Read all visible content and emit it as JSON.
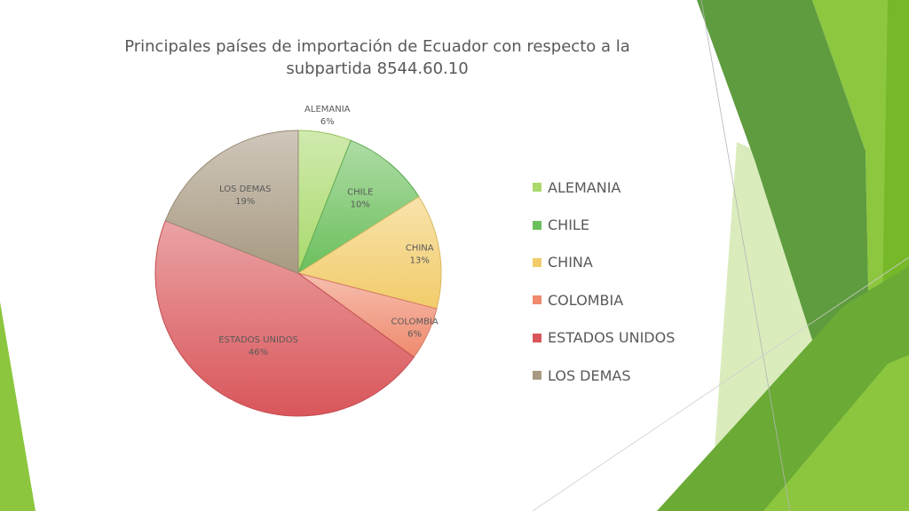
{
  "chart_data": {
    "type": "pie",
    "title": "Principales países de importación de Ecuador con respecto a la subpartida 8544.60.10",
    "categories": [
      "ALEMANIA",
      "CHILE",
      "CHINA",
      "COLOMBIA",
      "ESTADOS UNIDOS",
      "LOS DEMAS"
    ],
    "values": [
      6,
      10,
      13,
      6,
      46,
      19
    ],
    "value_labels": [
      "6%",
      "10%",
      "13%",
      "6%",
      "46%",
      "19%"
    ],
    "unit": "%",
    "colors": [
      "#a9d96b",
      "#6bbf5c",
      "#f2cc6a",
      "#ef8a6e",
      "#d9565a",
      "#a89a82"
    ],
    "legend_position": "right"
  }
}
